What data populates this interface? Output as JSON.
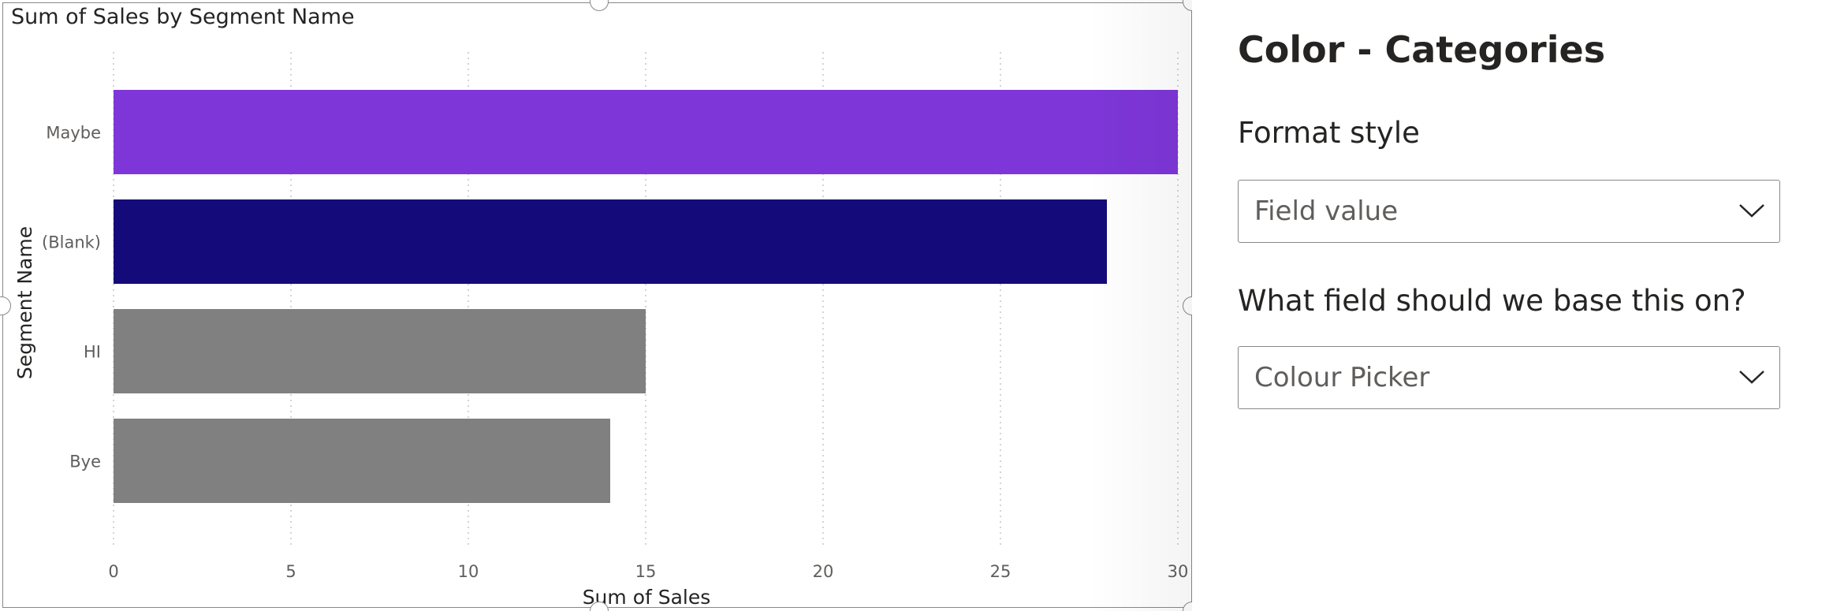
{
  "chart_data": {
    "type": "bar",
    "orientation": "horizontal",
    "title": "Sum of Sales by Segment Name",
    "xlabel": "Sum of Sales",
    "ylabel": "Segment Name",
    "categories": [
      "Maybe",
      "(Blank)",
      "HI",
      "Bye"
    ],
    "values": [
      30,
      28,
      15,
      14
    ],
    "colors": [
      "#7e36d8",
      "#140a7a",
      "#808080",
      "#808080"
    ],
    "xlim": [
      0,
      30
    ],
    "xticks": [
      0,
      5,
      10,
      15,
      20,
      25,
      30
    ],
    "grid": "vertical-dotted",
    "legend": "none"
  },
  "format_pane": {
    "heading": "Color - Categories",
    "format_style": {
      "label": "Format style",
      "value": "Field value"
    },
    "base_field": {
      "label": "What field should we base this on?",
      "value": "Colour Picker"
    }
  },
  "icons": {
    "dropdown": "chevron-down-icon",
    "resize": "resize-handle"
  }
}
